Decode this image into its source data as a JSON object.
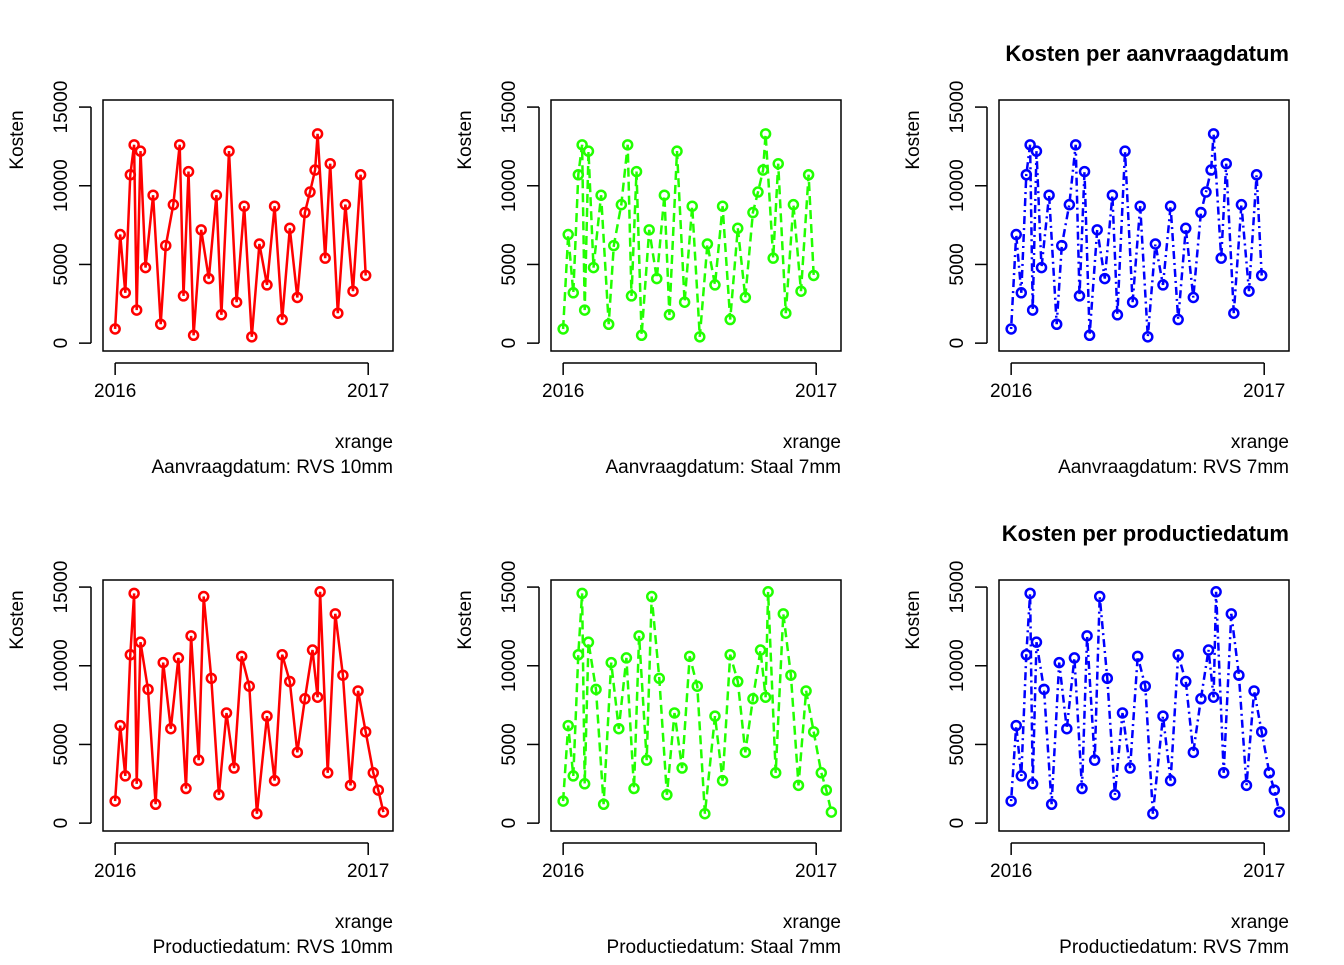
{
  "chart_data": [
    {
      "type": "line",
      "xlabel": "xrange",
      "subtitle": "Aanvraagdatum: RVS 10mm",
      "ylabel": "Kosten",
      "color": "#ff0000",
      "linestyle": "solid",
      "xlim": [
        2015.952,
        2017.098
      ],
      "ylim": [
        -500,
        15450
      ],
      "xticks": [
        2016,
        2017
      ],
      "yticks": [
        0,
        5000,
        10000,
        15000
      ],
      "x": [
        2016.0,
        2016.02,
        2016.04,
        2016.06,
        2016.075,
        2016.085,
        2016.1,
        2016.12,
        2016.15,
        2016.18,
        2016.2,
        2016.23,
        2016.255,
        2016.27,
        2016.29,
        2016.31,
        2016.34,
        2016.37,
        2016.4,
        2016.42,
        2016.45,
        2016.48,
        2016.51,
        2016.54,
        2016.57,
        2016.6,
        2016.63,
        2016.66,
        2016.69,
        2016.72,
        2016.75,
        2016.77,
        2016.79,
        2016.8,
        2016.83,
        2016.85,
        2016.88,
        2016.91,
        2016.94,
        2016.97,
        2016.99
      ],
      "values": [
        900,
        6900,
        3200,
        10700,
        12600,
        2100,
        12200,
        4800,
        9400,
        1200,
        6200,
        8800,
        12600,
        3000,
        10900,
        500,
        7200,
        4100,
        9400,
        1800,
        12200,
        2600,
        8700,
        400,
        6300,
        3700,
        8700,
        1500,
        7300,
        2900,
        8300,
        9600,
        11000,
        13300,
        5400,
        11400,
        1900,
        8800,
        3300,
        10700,
        4300
      ]
    },
    {
      "type": "line",
      "xlabel": "xrange",
      "subtitle": "Aanvraagdatum: Staal 7mm",
      "ylabel": "Kosten",
      "color": "#22ff00",
      "linestyle": "dashed",
      "xlim": [
        2015.952,
        2017.098
      ],
      "ylim": [
        -500,
        15450
      ],
      "xticks": [
        2016,
        2017
      ],
      "yticks": [
        0,
        5000,
        10000,
        15000
      ],
      "x": [
        2016.0,
        2016.02,
        2016.04,
        2016.06,
        2016.075,
        2016.085,
        2016.1,
        2016.12,
        2016.15,
        2016.18,
        2016.2,
        2016.23,
        2016.255,
        2016.27,
        2016.29,
        2016.31,
        2016.34,
        2016.37,
        2016.4,
        2016.42,
        2016.45,
        2016.48,
        2016.51,
        2016.54,
        2016.57,
        2016.6,
        2016.63,
        2016.66,
        2016.69,
        2016.72,
        2016.75,
        2016.77,
        2016.79,
        2016.8,
        2016.83,
        2016.85,
        2016.88,
        2016.91,
        2016.94,
        2016.97,
        2016.99
      ],
      "values": [
        900,
        6900,
        3200,
        10700,
        12600,
        2100,
        12200,
        4800,
        9400,
        1200,
        6200,
        8800,
        12600,
        3000,
        10900,
        500,
        7200,
        4100,
        9400,
        1800,
        12200,
        2600,
        8700,
        400,
        6300,
        3700,
        8700,
        1500,
        7300,
        2900,
        8300,
        9600,
        11000,
        13300,
        5400,
        11400,
        1900,
        8800,
        3300,
        10700,
        4300
      ]
    },
    {
      "type": "line",
      "title": "Kosten per aanvraagdatum",
      "xlabel": "xrange",
      "subtitle": "Aanvraagdatum: RVS 7mm",
      "ylabel": "Kosten",
      "color": "#0000ff",
      "linestyle": "dotdash",
      "xlim": [
        2015.952,
        2017.098
      ],
      "ylim": [
        -500,
        15450
      ],
      "xticks": [
        2016,
        2017
      ],
      "yticks": [
        0,
        5000,
        10000,
        15000
      ],
      "x": [
        2016.0,
        2016.02,
        2016.04,
        2016.06,
        2016.075,
        2016.085,
        2016.1,
        2016.12,
        2016.15,
        2016.18,
        2016.2,
        2016.23,
        2016.255,
        2016.27,
        2016.29,
        2016.31,
        2016.34,
        2016.37,
        2016.4,
        2016.42,
        2016.45,
        2016.48,
        2016.51,
        2016.54,
        2016.57,
        2016.6,
        2016.63,
        2016.66,
        2016.69,
        2016.72,
        2016.75,
        2016.77,
        2016.79,
        2016.8,
        2016.83,
        2016.85,
        2016.88,
        2016.91,
        2016.94,
        2016.97,
        2016.99
      ],
      "values": [
        900,
        6900,
        3200,
        10700,
        12600,
        2100,
        12200,
        4800,
        9400,
        1200,
        6200,
        8800,
        12600,
        3000,
        10900,
        500,
        7200,
        4100,
        9400,
        1800,
        12200,
        2600,
        8700,
        400,
        6300,
        3700,
        8700,
        1500,
        7300,
        2900,
        8300,
        9600,
        11000,
        13300,
        5400,
        11400,
        1900,
        8800,
        3300,
        10700,
        4300
      ]
    },
    {
      "type": "line",
      "xlabel": "xrange",
      "subtitle": "Productiedatum: RVS 10mm",
      "ylabel": "Kosten",
      "color": "#ff0000",
      "linestyle": "solid",
      "xlim": [
        2015.952,
        2017.098
      ],
      "ylim": [
        -500,
        15450
      ],
      "xticks": [
        2016,
        2017
      ],
      "yticks": [
        0,
        5000,
        10000,
        15000
      ],
      "x": [
        2016.0,
        2016.02,
        2016.04,
        2016.06,
        2016.075,
        2016.085,
        2016.1,
        2016.13,
        2016.16,
        2016.19,
        2016.22,
        2016.25,
        2016.28,
        2016.3,
        2016.33,
        2016.35,
        2016.38,
        2016.41,
        2016.44,
        2016.47,
        2016.5,
        2016.53,
        2016.56,
        2016.6,
        2016.63,
        2016.66,
        2016.69,
        2016.72,
        2016.75,
        2016.78,
        2016.8,
        2016.81,
        2016.84,
        2016.87,
        2016.9,
        2016.93,
        2016.96,
        2016.99,
        2017.02,
        2017.04,
        2017.06
      ],
      "values": [
        1400,
        6200,
        3000,
        10700,
        14600,
        2500,
        11500,
        8500,
        1200,
        10200,
        6000,
        10500,
        2200,
        11900,
        4000,
        14400,
        9200,
        1800,
        7000,
        3500,
        10600,
        8700,
        600,
        6800,
        2700,
        10700,
        9000,
        4500,
        7900,
        11000,
        8000,
        14700,
        3200,
        13300,
        9400,
        2400,
        8400,
        5800,
        3200,
        2100,
        700
      ]
    },
    {
      "type": "line",
      "xlabel": "xrange",
      "subtitle": "Productiedatum: Staal 7mm",
      "ylabel": "Kosten",
      "color": "#22ff00",
      "linestyle": "dashed",
      "xlim": [
        2015.952,
        2017.098
      ],
      "ylim": [
        -500,
        15450
      ],
      "xticks": [
        2016,
        2017
      ],
      "yticks": [
        0,
        5000,
        10000,
        15000
      ],
      "x": [
        2016.0,
        2016.02,
        2016.04,
        2016.06,
        2016.075,
        2016.085,
        2016.1,
        2016.13,
        2016.16,
        2016.19,
        2016.22,
        2016.25,
        2016.28,
        2016.3,
        2016.33,
        2016.35,
        2016.38,
        2016.41,
        2016.44,
        2016.47,
        2016.5,
        2016.53,
        2016.56,
        2016.6,
        2016.63,
        2016.66,
        2016.69,
        2016.72,
        2016.75,
        2016.78,
        2016.8,
        2016.81,
        2016.84,
        2016.87,
        2016.9,
        2016.93,
        2016.96,
        2016.99,
        2017.02,
        2017.04,
        2017.06
      ],
      "values": [
        1400,
        6200,
        3000,
        10700,
        14600,
        2500,
        11500,
        8500,
        1200,
        10200,
        6000,
        10500,
        2200,
        11900,
        4000,
        14400,
        9200,
        1800,
        7000,
        3500,
        10600,
        8700,
        600,
        6800,
        2700,
        10700,
        9000,
        4500,
        7900,
        11000,
        8000,
        14700,
        3200,
        13300,
        9400,
        2400,
        8400,
        5800,
        3200,
        2100,
        700
      ]
    },
    {
      "type": "line",
      "title": "Kosten per productiedatum",
      "xlabel": "xrange",
      "subtitle": "Productiedatum: RVS 7mm",
      "ylabel": "Kosten",
      "color": "#0000ff",
      "linestyle": "dotdash",
      "xlim": [
        2015.952,
        2017.098
      ],
      "ylim": [
        -500,
        15450
      ],
      "xticks": [
        2016,
        2017
      ],
      "yticks": [
        0,
        5000,
        10000,
        15000
      ],
      "x": [
        2016.0,
        2016.02,
        2016.04,
        2016.06,
        2016.075,
        2016.085,
        2016.1,
        2016.13,
        2016.16,
        2016.19,
        2016.22,
        2016.25,
        2016.28,
        2016.3,
        2016.33,
        2016.35,
        2016.38,
        2016.41,
        2016.44,
        2016.47,
        2016.5,
        2016.53,
        2016.56,
        2016.6,
        2016.63,
        2016.66,
        2016.69,
        2016.72,
        2016.75,
        2016.78,
        2016.8,
        2016.81,
        2016.84,
        2016.87,
        2016.9,
        2016.93,
        2016.96,
        2016.99,
        2017.02,
        2017.04,
        2017.06
      ],
      "values": [
        1400,
        6200,
        3000,
        10700,
        14600,
        2500,
        11500,
        8500,
        1200,
        10200,
        6000,
        10500,
        2200,
        11900,
        4000,
        14400,
        9200,
        1800,
        7000,
        3500,
        10600,
        8700,
        600,
        6800,
        2700,
        10700,
        9000,
        4500,
        7900,
        11000,
        8000,
        14700,
        3200,
        13300,
        9400,
        2400,
        8400,
        5800,
        3200,
        2100,
        700
      ]
    }
  ]
}
